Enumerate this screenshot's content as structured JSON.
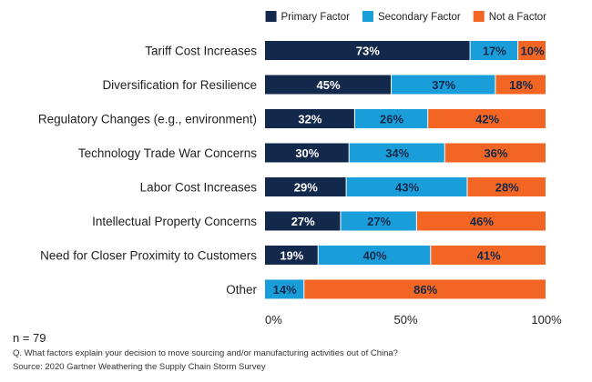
{
  "chart_data": {
    "type": "bar",
    "orientation": "horizontal",
    "stacked": true,
    "categories": [
      "Tariff Cost Increases",
      "Diversification for Resilience",
      "Regulatory Changes (e.g., environment)",
      "Technology Trade War Concerns",
      "Labor Cost Increases",
      "Intellectual Property Concerns",
      "Need for Closer Proximity to Customers",
      "Other"
    ],
    "series": [
      {
        "name": "Primary Factor",
        "color": "#13294b",
        "text_color": "#ffffff",
        "values": [
          73,
          45,
          32,
          30,
          29,
          27,
          19,
          0
        ],
        "labels": [
          "73%",
          "45%",
          "32%",
          "30%",
          "29%",
          "27%",
          "19%",
          ""
        ]
      },
      {
        "name": "Secondary Factor",
        "color": "#1a9ed9",
        "text_color": "#13294b",
        "values": [
          17,
          37,
          26,
          34,
          43,
          27,
          40,
          14
        ],
        "labels": [
          "17%",
          "37%",
          "26%",
          "34%",
          "43%",
          "27%",
          "40%",
          "14%"
        ]
      },
      {
        "name": "Not a Factor",
        "color": "#f26522",
        "text_color": "#13294b",
        "values": [
          10,
          18,
          42,
          36,
          28,
          46,
          41,
          86
        ],
        "labels": [
          "10%",
          "18%",
          "42%",
          "36%",
          "28%",
          "46%",
          "41%",
          "86%"
        ]
      }
    ],
    "xlim": [
      0,
      100
    ],
    "xticks": [
      0,
      50,
      100
    ],
    "xtick_labels": [
      "0%",
      "50%",
      "100%"
    ],
    "legend_position": "top-right",
    "grid": false
  },
  "footer": {
    "n": "n = 79",
    "question": "Q. What factors explain your decision to move sourcing and/or manufacturing activities out of China?",
    "source": "Source: 2020 Gartner Weathering the Supply Chain Storm Survey"
  }
}
